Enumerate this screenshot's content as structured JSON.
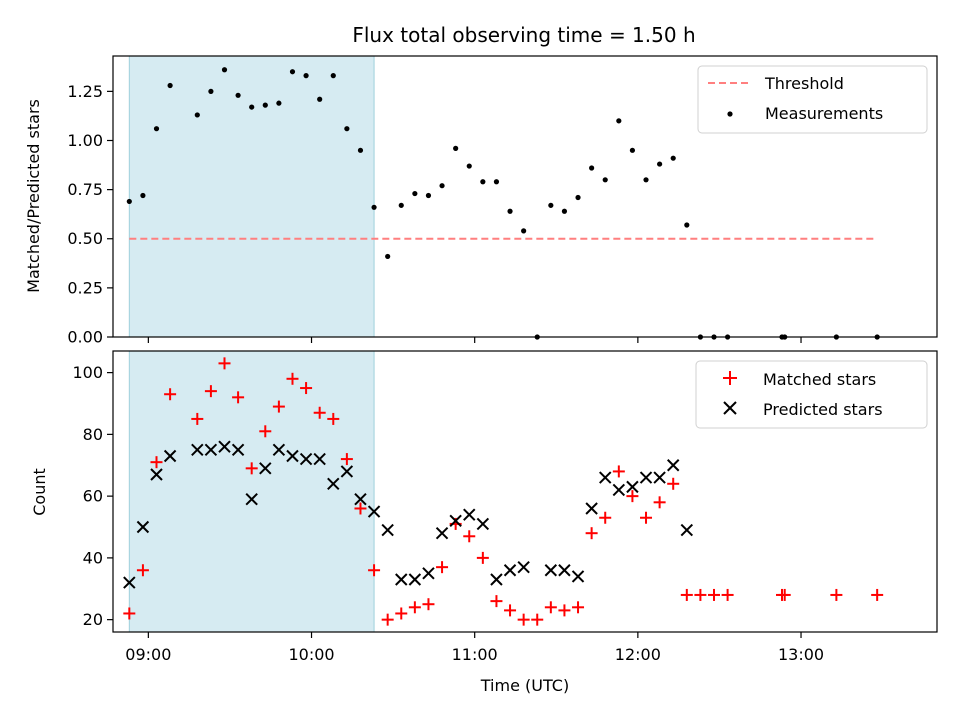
{
  "chart_data": [
    {
      "type": "scatter",
      "title": "Flux total observing time = 1.50 h",
      "xlabel": "",
      "ylabel": "Matched/Predicted stars",
      "xlim": [
        "08:47",
        "13:50"
      ],
      "ylim": [
        0,
        1.43
      ],
      "yticks": [
        "0.00",
        "0.25",
        "0.50",
        "0.75",
        "1.00",
        "1.25"
      ],
      "shaded_span": [
        "08:53",
        "10:23"
      ],
      "threshold": {
        "name": "Threshold",
        "y": 0.5,
        "color": "#ff7f7f"
      },
      "series": [
        {
          "name": "Measurements",
          "color": "#000000",
          "points": [
            [
              "08:53",
              0.69
            ],
            [
              "08:58",
              0.72
            ],
            [
              "09:03",
              1.06
            ],
            [
              "09:08",
              1.28
            ],
            [
              "09:18",
              1.13
            ],
            [
              "09:23",
              1.25
            ],
            [
              "09:28",
              1.36
            ],
            [
              "09:33",
              1.23
            ],
            [
              "09:38",
              1.17
            ],
            [
              "09:43",
              1.18
            ],
            [
              "09:48",
              1.19
            ],
            [
              "09:53",
              1.35
            ],
            [
              "09:58",
              1.33
            ],
            [
              "10:03",
              1.21
            ],
            [
              "10:08",
              1.33
            ],
            [
              "10:13",
              1.06
            ],
            [
              "10:18",
              0.95
            ],
            [
              "10:23",
              0.66
            ],
            [
              "10:28",
              0.41
            ],
            [
              "10:33",
              0.67
            ],
            [
              "10:38",
              0.73
            ],
            [
              "10:43",
              0.72
            ],
            [
              "10:48",
              0.77
            ],
            [
              "10:53",
              0.96
            ],
            [
              "10:58",
              0.87
            ],
            [
              "11:03",
              0.79
            ],
            [
              "11:08",
              0.79
            ],
            [
              "11:13",
              0.64
            ],
            [
              "11:18",
              0.54
            ],
            [
              "11:23",
              0.0
            ],
            [
              "11:28",
              0.67
            ],
            [
              "11:33",
              0.64
            ],
            [
              "11:38",
              0.71
            ],
            [
              "11:43",
              0.86
            ],
            [
              "11:48",
              0.8
            ],
            [
              "11:53",
              1.1
            ],
            [
              "11:58",
              0.95
            ],
            [
              "12:03",
              0.8
            ],
            [
              "12:08",
              0.88
            ],
            [
              "12:13",
              0.91
            ],
            [
              "12:18",
              0.57
            ],
            [
              "12:23",
              0.0
            ],
            [
              "12:28",
              0.0
            ],
            [
              "12:33",
              0.0
            ],
            [
              "12:53",
              0.0
            ],
            [
              "12:54",
              0.0
            ],
            [
              "13:13",
              0.0
            ],
            [
              "13:28",
              0.0
            ]
          ]
        }
      ],
      "legend_position": "top-right"
    },
    {
      "type": "scatter",
      "title": "",
      "xlabel": "Time (UTC)",
      "ylabel": "Count",
      "xlim": [
        "08:47",
        "13:50"
      ],
      "ylim": [
        16,
        107
      ],
      "yticks": [
        "20",
        "40",
        "60",
        "80",
        "100"
      ],
      "xticks": [
        "09:00",
        "10:00",
        "11:00",
        "12:00",
        "13:00"
      ],
      "shaded_span": [
        "08:53",
        "10:23"
      ],
      "series": [
        {
          "name": "Matched stars",
          "color": "#ff0000",
          "marker": "plus",
          "points": [
            [
              "08:53",
              22
            ],
            [
              "08:58",
              36
            ],
            [
              "09:03",
              71
            ],
            [
              "09:08",
              93
            ],
            [
              "09:18",
              85
            ],
            [
              "09:23",
              94
            ],
            [
              "09:28",
              103
            ],
            [
              "09:33",
              92
            ],
            [
              "09:38",
              69
            ],
            [
              "09:43",
              81
            ],
            [
              "09:48",
              89
            ],
            [
              "09:53",
              98
            ],
            [
              "09:58",
              95
            ],
            [
              "10:03",
              87
            ],
            [
              "10:08",
              85
            ],
            [
              "10:13",
              72
            ],
            [
              "10:18",
              56
            ],
            [
              "10:23",
              36
            ],
            [
              "10:28",
              20
            ],
            [
              "10:33",
              22
            ],
            [
              "10:38",
              24
            ],
            [
              "10:43",
              25
            ],
            [
              "10:48",
              37
            ],
            [
              "10:53",
              51
            ],
            [
              "10:58",
              47
            ],
            [
              "11:03",
              40
            ],
            [
              "11:08",
              26
            ],
            [
              "11:13",
              23
            ],
            [
              "11:18",
              20
            ],
            [
              "11:23",
              20
            ],
            [
              "11:28",
              24
            ],
            [
              "11:33",
              23
            ],
            [
              "11:38",
              24
            ],
            [
              "11:43",
              48
            ],
            [
              "11:48",
              53
            ],
            [
              "11:53",
              68
            ],
            [
              "11:58",
              60
            ],
            [
              "12:03",
              53
            ],
            [
              "12:08",
              58
            ],
            [
              "12:13",
              64
            ],
            [
              "12:18",
              28
            ],
            [
              "12:23",
              28
            ],
            [
              "12:28",
              28
            ],
            [
              "12:33",
              28
            ],
            [
              "12:53",
              28
            ],
            [
              "12:54",
              28
            ],
            [
              "13:13",
              28
            ],
            [
              "13:28",
              28
            ]
          ]
        },
        {
          "name": "Predicted stars",
          "color": "#000000",
          "marker": "x",
          "points": [
            [
              "08:53",
              32
            ],
            [
              "08:58",
              50
            ],
            [
              "09:03",
              67
            ],
            [
              "09:08",
              73
            ],
            [
              "09:18",
              75
            ],
            [
              "09:23",
              75
            ],
            [
              "09:28",
              76
            ],
            [
              "09:33",
              75
            ],
            [
              "09:38",
              59
            ],
            [
              "09:43",
              69
            ],
            [
              "09:48",
              75
            ],
            [
              "09:53",
              73
            ],
            [
              "09:58",
              72
            ],
            [
              "10:03",
              72
            ],
            [
              "10:08",
              64
            ],
            [
              "10:13",
              68
            ],
            [
              "10:18",
              59
            ],
            [
              "10:23",
              55
            ],
            [
              "10:28",
              49
            ],
            [
              "10:33",
              33
            ],
            [
              "10:38",
              33
            ],
            [
              "10:43",
              35
            ],
            [
              "10:48",
              48
            ],
            [
              "10:53",
              52
            ],
            [
              "10:58",
              54
            ],
            [
              "11:03",
              51
            ],
            [
              "11:08",
              33
            ],
            [
              "11:13",
              36
            ],
            [
              "11:18",
              37
            ],
            [
              "11:28",
              36
            ],
            [
              "11:33",
              36
            ],
            [
              "11:38",
              34
            ],
            [
              "11:43",
              56
            ],
            [
              "11:48",
              66
            ],
            [
              "11:53",
              62
            ],
            [
              "11:58",
              63
            ],
            [
              "12:03",
              66
            ],
            [
              "12:08",
              66
            ],
            [
              "12:13",
              70
            ],
            [
              "12:18",
              49
            ]
          ]
        }
      ],
      "legend_position": "top-right"
    }
  ]
}
